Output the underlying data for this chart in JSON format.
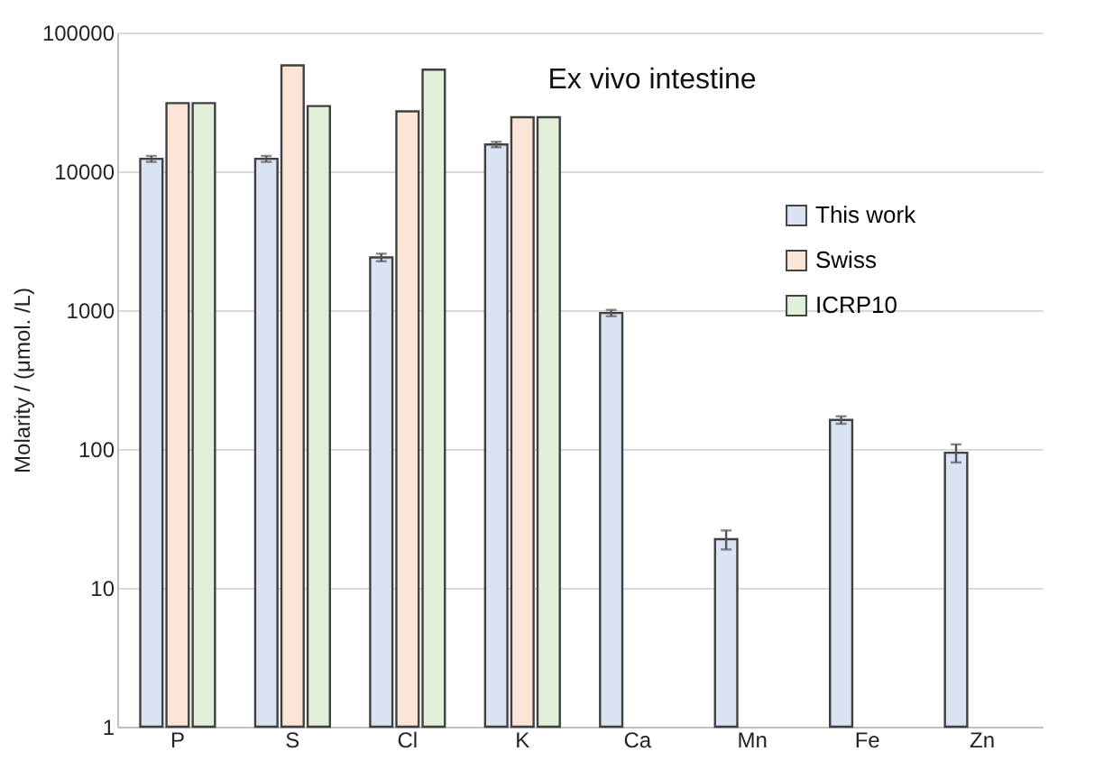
{
  "chart_data": {
    "type": "bar",
    "title": "Ex vivo intestine",
    "ylabel": "Molarity / (μmol. /L)",
    "categories": [
      "P",
      "S",
      "Cl",
      "K",
      "Ca",
      "Mn",
      "Fe",
      "Zn"
    ],
    "series": [
      {
        "name": "This work",
        "color": "#dae3f3",
        "values": [
          12300,
          12300,
          2400,
          15600,
          955,
          22.4,
          162,
          94
        ],
        "errors": [
          600,
          600,
          150,
          700,
          50,
          3.5,
          10,
          14
        ]
      },
      {
        "name": "Swiss",
        "color": "#fbe5d6",
        "values": [
          31000,
          58000,
          27000,
          24500,
          null,
          null,
          null,
          null
        ]
      },
      {
        "name": "ICRP10",
        "color": "#e2f0d9",
        "values": [
          31000,
          29500,
          54000,
          24500,
          null,
          null,
          null,
          null
        ]
      }
    ],
    "log": true,
    "ylim": [
      1,
      100000
    ],
    "yticks": [
      1,
      10,
      100,
      1000,
      10000,
      100000
    ],
    "grid": "y",
    "legend": "right"
  }
}
